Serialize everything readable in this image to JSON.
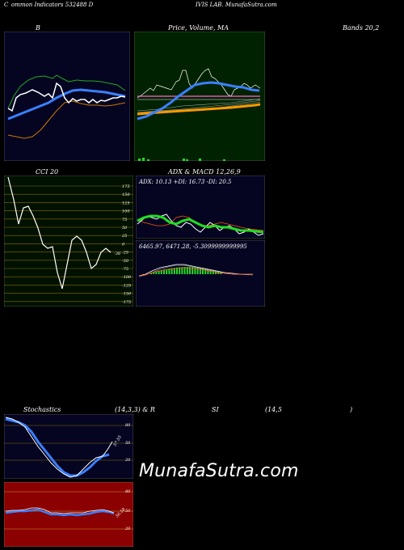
{
  "header": {
    "part1": "C",
    "part2": "ommon  Indicators 532488  D",
    "part3": "IVIS LAB. MunafaSutra.com"
  },
  "labels": {
    "bollinger": "B",
    "price_ma": "Price,  Volume,  MA",
    "bands": "Bands 20,2",
    "cci": "CCI 20",
    "adx_macd": "ADX  & MACD 12,26,9",
    "stochastics": "Stochastics",
    "stoch_params": "(14,3,3) & R",
    "rsi": "SI",
    "rsi_params": "(14,5",
    "rsi_close": ")"
  },
  "cci": {
    "ticks": [
      "175",
      "150",
      "125",
      "100",
      "75",
      "50",
      "25",
      "0",
      "-25",
      "-50",
      "-75",
      "-100",
      "-125",
      "-150",
      "-175"
    ],
    "value_label": "-38"
  },
  "adx": {
    "text": "ADX: 10.13  +DI: 16.73 -DI: 20.5"
  },
  "macd": {
    "text": "6465.97,  6471.28,  -5.3099999999995"
  },
  "stoch": {
    "ticks": [
      "80",
      "50",
      "20"
    ],
    "value_label": "57.55"
  },
  "rsi": {
    "ticks": [
      "80",
      "50",
      "20"
    ],
    "value_label": "56.58"
  },
  "watermark": "MunafaSutra.com",
  "colors": {
    "dark_blue_bg": "#050522",
    "green_bg": "#002200",
    "red_bg": "#8b0000",
    "cci_bg": "#001100",
    "blue_line": "#3a7fff",
    "green_line": "#22dd22",
    "orange_line": "#ff9900",
    "grid": "#8b6a00"
  }
}
